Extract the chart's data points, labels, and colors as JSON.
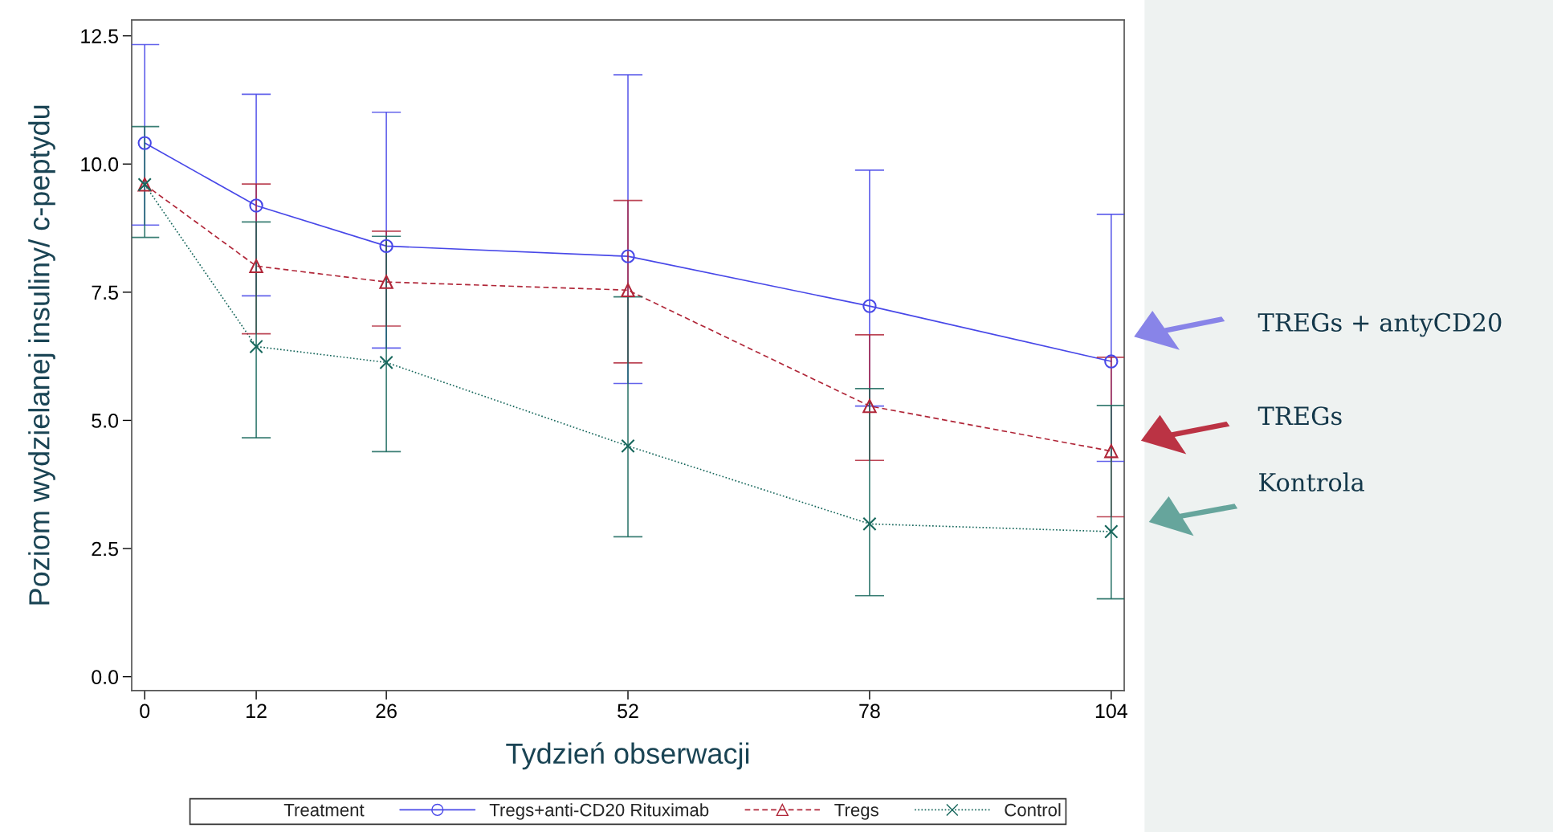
{
  "chart_data": {
    "type": "line",
    "xlabel": "Tydzień obserwacji",
    "ylabel": "Poziom wydzielanej insuliny/ c-peptydu",
    "x": [
      0,
      12,
      26,
      52,
      78,
      104
    ],
    "xlim": [
      -1.4,
      105.4
    ],
    "xticks": [
      0,
      12,
      26,
      52,
      78,
      104
    ],
    "ylim": [
      -0.27,
      12.81
    ],
    "yticks": [
      {
        "value": 0,
        "label": "0.0"
      },
      {
        "value": 2.5,
        "label": "2.5"
      },
      {
        "value": 5,
        "label": "5.0"
      },
      {
        "value": 7.5,
        "label": "7.5"
      },
      {
        "value": 10,
        "label": "10.0"
      },
      {
        "value": 12.5,
        "label": "12.5"
      }
    ],
    "legend_title": "Treatment",
    "legend": "bottom",
    "grid": false,
    "series": [
      {
        "name": "Tregs+anti-CD20 Rituximab",
        "color": "#4848e8",
        "marker": "circle",
        "line_style": "solid",
        "values": [
          10.41,
          9.19,
          8.4,
          8.2,
          7.23,
          6.15
        ],
        "errors": [
          [
            8.81,
            12.33
          ],
          [
            7.43,
            11.36
          ],
          [
            6.41,
            11.01
          ],
          [
            5.72,
            11.74
          ],
          [
            5.28,
            9.88
          ],
          [
            4.2,
            9.02
          ]
        ]
      },
      {
        "name": "Tregs",
        "color": "#b02638",
        "marker": "triangle",
        "line_style": "dashed",
        "values": [
          9.6,
          8.01,
          7.7,
          7.54,
          5.28,
          4.4
        ],
        "errors": [
          null,
          [
            6.69,
            9.61
          ],
          [
            6.84,
            8.69
          ],
          [
            6.12,
            9.29
          ],
          [
            4.22,
            6.67
          ],
          [
            3.12,
            6.23
          ]
        ]
      },
      {
        "name": "Control",
        "color": "#17675c",
        "marker": "cross",
        "line_style": "dotted",
        "values": [
          9.6,
          6.44,
          6.13,
          4.5,
          2.98,
          2.83
        ],
        "errors": [
          [
            8.57,
            10.73
          ],
          [
            4.66,
            8.87
          ],
          [
            4.39,
            8.59
          ],
          [
            2.73,
            7.41
          ],
          [
            1.58,
            5.62
          ],
          [
            1.52,
            5.29
          ]
        ]
      }
    ],
    "annotations": [
      "TREGs + antyCD20",
      "TREGs",
      "Kontrola"
    ]
  }
}
